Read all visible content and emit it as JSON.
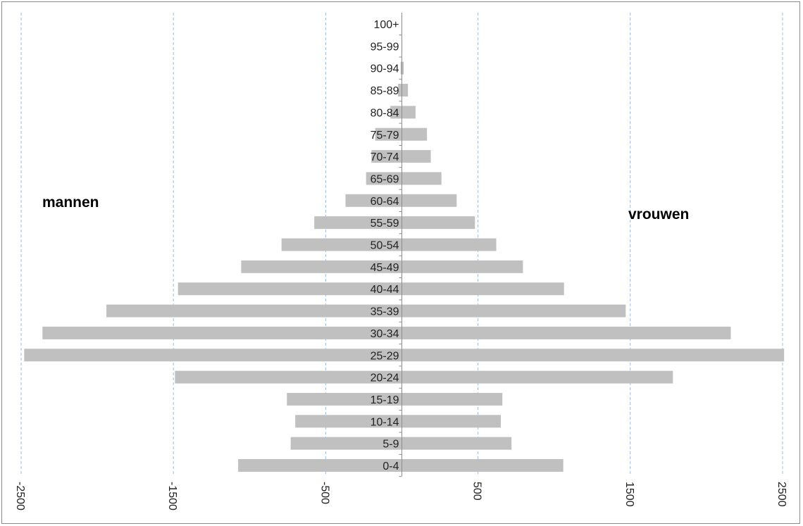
{
  "chart_data": {
    "type": "bar",
    "orientation": "horizontal",
    "categories": [
      "0-4",
      "5-9",
      "10-14",
      "15-19",
      "20-24",
      "25-29",
      "30-34",
      "35-39",
      "40-44",
      "45-49",
      "50-54",
      "55-59",
      "60-64",
      "65-69",
      "70-74",
      "75-79",
      "80-84",
      "85-89",
      "90-94",
      "95-99",
      "100+"
    ],
    "series": [
      {
        "name": "mannen",
        "values": [
          -1075,
          -730,
          -700,
          -755,
          -1490,
          -2480,
          -2360,
          -1940,
          -1470,
          -1055,
          -790,
          -575,
          -370,
          -235,
          -200,
          -175,
          -75,
          -25,
          -8,
          -2,
          -1
        ]
      },
      {
        "name": "vrouwen",
        "values": [
          1060,
          720,
          650,
          660,
          1780,
          2510,
          2160,
          1470,
          1065,
          795,
          620,
          480,
          360,
          260,
          190,
          165,
          90,
          40,
          12,
          3,
          1
        ]
      }
    ],
    "xlim": [
      -2500,
      2500
    ],
    "xticks": [
      -2500,
      -1500,
      -500,
      500,
      1500,
      2500
    ],
    "xtick_labels": [
      "-2500",
      "-1500",
      "-500",
      "500",
      "1500",
      "2500"
    ],
    "grid": "vertical dashed",
    "bar_color": "#c0c0c0",
    "grid_color": "#9dbde0",
    "annotations": {
      "left": "mannen",
      "right": "vrouwen"
    }
  }
}
